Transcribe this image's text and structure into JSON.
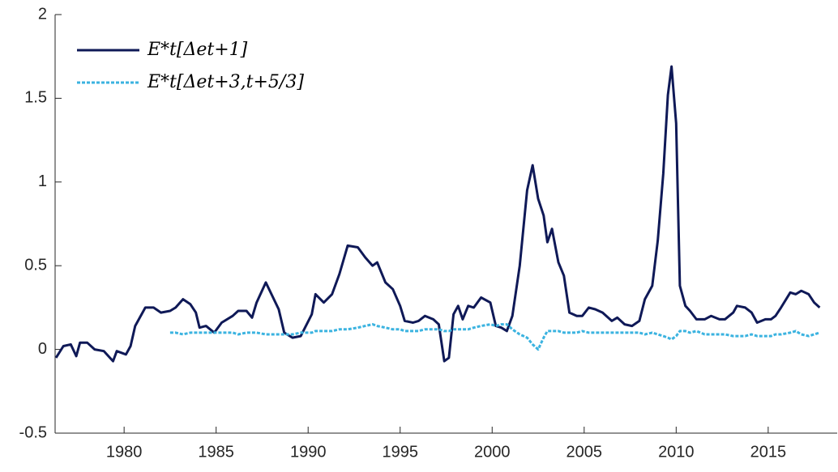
{
  "chart_data": {
    "type": "line",
    "x": [
      1976.3,
      1976.7,
      1977.1,
      1977.4,
      1977.6,
      1978.0,
      1978.4,
      1978.9,
      1979.4,
      1979.6,
      1980.1,
      1980.35,
      1980.6,
      1981.15,
      1981.6,
      1982.0,
      1982.5,
      1982.8,
      1983.2,
      1983.6,
      1983.9,
      1984.1,
      1984.45,
      1984.9,
      1985.3,
      1985.9,
      1986.2,
      1986.65,
      1986.95,
      1987.2,
      1987.7,
      1988.4,
      1988.7,
      1989.15,
      1989.6,
      1990.2,
      1990.4,
      1990.85,
      1991.3,
      1991.7,
      1992.15,
      1992.7,
      1993.1,
      1993.5,
      1993.75,
      1994.2,
      1994.6,
      1995.0,
      1995.25,
      1995.7,
      1996.0,
      1996.35,
      1996.8,
      1997.1,
      1997.4,
      1997.65,
      1997.9,
      1998.15,
      1998.4,
      1998.7,
      1999.0,
      1999.4,
      1999.9,
      2000.2,
      2000.5,
      2000.8,
      2001.1,
      2001.5,
      2001.9,
      2002.2,
      2002.5,
      2002.8,
      2003.0,
      2003.25,
      2003.6,
      2003.9,
      2004.2,
      2004.6,
      2004.9,
      2005.25,
      2005.6,
      2006.0,
      2006.5,
      2006.8,
      2007.2,
      2007.6,
      2008.0,
      2008.3,
      2008.7,
      2009.0,
      2009.3,
      2009.55,
      2009.75,
      2010.0,
      2010.2,
      2010.5,
      2010.75,
      2011.1,
      2011.55,
      2011.9,
      2012.35,
      2012.65,
      2013.1,
      2013.3,
      2013.75,
      2014.1,
      2014.4,
      2014.85,
      2015.15,
      2015.4,
      2015.7,
      2016.2,
      2016.5,
      2016.8,
      2017.2,
      2017.5,
      2017.8
    ],
    "series": [
      {
        "name": "E*t[Δet+1]",
        "color": "#0f1957",
        "dashed": false,
        "values": [
          -0.05,
          0.02,
          0.03,
          -0.04,
          0.04,
          0.04,
          0.0,
          -0.01,
          -0.07,
          -0.01,
          -0.03,
          0.02,
          0.14,
          0.25,
          0.25,
          0.22,
          0.23,
          0.25,
          0.3,
          0.27,
          0.22,
          0.13,
          0.14,
          0.1,
          0.16,
          0.2,
          0.23,
          0.23,
          0.19,
          0.28,
          0.4,
          0.24,
          0.1,
          0.07,
          0.08,
          0.21,
          0.33,
          0.28,
          0.33,
          0.45,
          0.62,
          0.61,
          0.55,
          0.5,
          0.52,
          0.4,
          0.36,
          0.26,
          0.17,
          0.16,
          0.17,
          0.2,
          0.18,
          0.15,
          -0.07,
          -0.05,
          0.21,
          0.26,
          0.18,
          0.26,
          0.25,
          0.31,
          0.28,
          0.14,
          0.13,
          0.11,
          0.2,
          0.5,
          0.95,
          1.1,
          0.9,
          0.8,
          0.64,
          0.72,
          0.52,
          0.44,
          0.22,
          0.2,
          0.2,
          0.25,
          0.24,
          0.22,
          0.17,
          0.19,
          0.15,
          0.14,
          0.17,
          0.3,
          0.38,
          0.65,
          1.05,
          1.52,
          1.69,
          1.35,
          0.38,
          0.26,
          0.23,
          0.18,
          0.18,
          0.2,
          0.18,
          0.18,
          0.22,
          0.26,
          0.25,
          0.22,
          0.16,
          0.18,
          0.18,
          0.2,
          0.25,
          0.34,
          0.33,
          0.35,
          0.33,
          0.28,
          0.25
        ]
      },
      {
        "name": "E*t[Δet+3,t+5/3]",
        "color": "#3bb3e0",
        "dashed": true,
        "values": [
          null,
          null,
          null,
          null,
          null,
          null,
          null,
          null,
          null,
          null,
          null,
          null,
          null,
          null,
          null,
          null,
          0.1,
          0.1,
          0.09,
          0.1,
          0.1,
          0.1,
          0.1,
          0.1,
          0.1,
          0.1,
          0.09,
          0.1,
          0.1,
          0.1,
          0.09,
          0.09,
          0.09,
          0.09,
          0.1,
          0.1,
          0.11,
          0.11,
          0.11,
          0.12,
          0.12,
          0.13,
          0.14,
          0.15,
          0.14,
          0.13,
          0.12,
          0.12,
          0.11,
          0.11,
          0.11,
          0.12,
          0.12,
          0.12,
          0.11,
          0.11,
          0.12,
          0.12,
          0.12,
          0.12,
          0.13,
          0.14,
          0.15,
          0.14,
          0.15,
          0.15,
          0.12,
          0.09,
          0.07,
          0.03,
          0.0,
          0.07,
          0.11,
          0.11,
          0.11,
          0.1,
          0.1,
          0.1,
          0.11,
          0.1,
          0.1,
          0.1,
          0.1,
          0.1,
          0.1,
          0.1,
          0.1,
          0.09,
          0.1,
          0.09,
          0.08,
          0.07,
          0.06,
          0.08,
          0.11,
          0.11,
          0.1,
          0.11,
          0.09,
          0.09,
          0.09,
          0.09,
          0.08,
          0.08,
          0.08,
          0.09,
          0.08,
          0.08,
          0.08,
          0.09,
          0.09,
          0.1,
          0.11,
          0.09,
          0.08,
          0.09,
          0.1
        ]
      }
    ],
    "xlim": [
      1976.25,
      2018.75
    ],
    "xticks": [
      1980,
      1985,
      1990,
      1995,
      2000,
      2005,
      2010,
      2015
    ],
    "ylim": [
      -0.5,
      2
    ],
    "yticks": [
      -0.5,
      0,
      0.5,
      1,
      1.5,
      2
    ],
    "grid": false,
    "legend": "upper left"
  }
}
